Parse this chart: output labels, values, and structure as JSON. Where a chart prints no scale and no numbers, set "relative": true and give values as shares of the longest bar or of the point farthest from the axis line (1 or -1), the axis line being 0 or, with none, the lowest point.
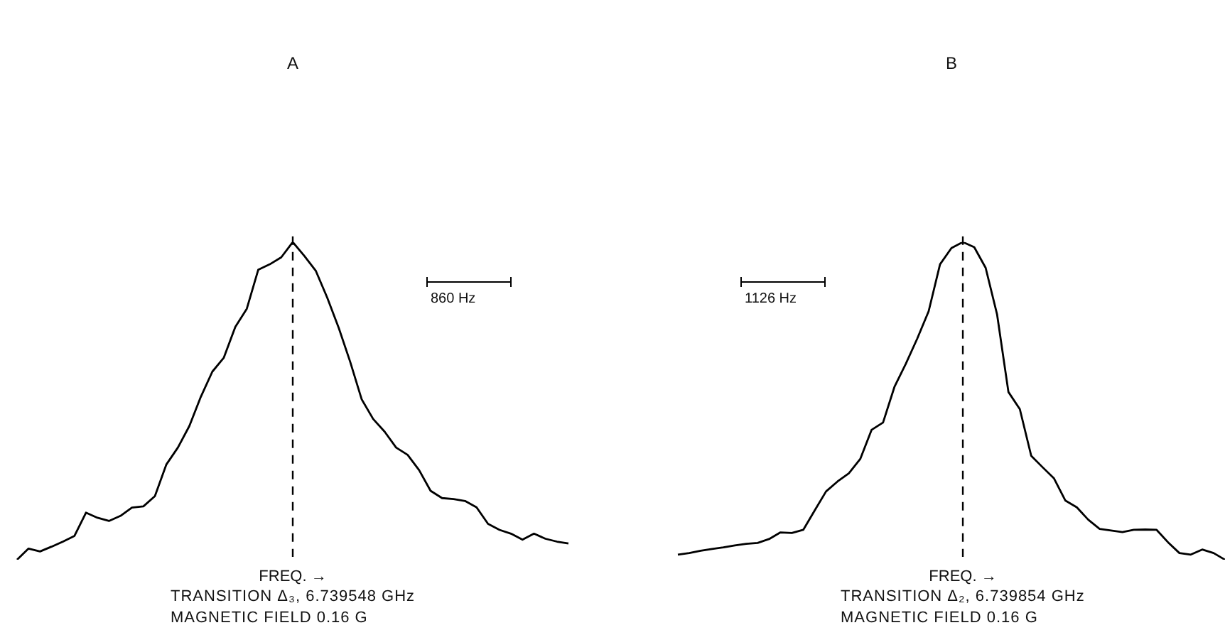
{
  "chart_data": [
    {
      "type": "line",
      "title": "A",
      "xlabel": "FREQ. →",
      "relative": true,
      "tick_labels": false,
      "annotations": [
        "TRANSITION Δ₃, 6.739548 GHz",
        "MAGNETIC FIELD 0.16 G",
        "860 Hz"
      ],
      "categories": [
        null,
        null,
        null,
        null,
        null,
        null,
        null,
        null,
        null,
        null,
        null,
        null,
        null,
        null,
        null,
        null,
        null,
        null,
        null,
        null,
        null,
        null,
        null,
        null,
        null,
        null,
        null,
        null,
        null,
        null,
        null,
        null,
        null,
        null,
        null,
        null,
        null,
        null,
        null,
        null,
        null,
        null,
        null,
        null,
        null,
        null,
        null,
        null,
        null
      ],
      "series": [
        {
          "color": "#000000",
          "values": [
            0,
            0.035,
            0.026,
            0.041,
            0.057,
            0.075,
            0.148,
            0.132,
            0.122,
            0.138,
            0.164,
            0.168,
            0.2,
            0.3,
            0.353,
            0.421,
            0.513,
            0.592,
            0.636,
            0.733,
            0.79,
            0.913,
            0.93,
            0.952,
            1,
            0.957,
            0.91,
            0.825,
            0.73,
            0.623,
            0.505,
            0.443,
            0.403,
            0.353,
            0.33,
            0.282,
            0.217,
            0.194,
            0.191,
            0.185,
            0.165,
            0.113,
            0.094,
            0.082,
            0.063,
            0.082,
            0.066,
            0.057,
            0.051
          ]
        }
      ]
    },
    {
      "type": "line",
      "title": "B",
      "xlabel": "FREQ. →",
      "relative": true,
      "tick_labels": false,
      "annotations": [
        "TRANSITION Δ₂, 6.739854 GHz",
        "MAGNETIC FIELD 0.16 G",
        "1126 Hz"
      ],
      "categories": [
        null,
        null,
        null,
        null,
        null,
        null,
        null,
        null,
        null,
        null,
        null,
        null,
        null,
        null,
        null,
        null,
        null,
        null,
        null,
        null,
        null,
        null,
        null,
        null,
        null,
        null,
        null,
        null,
        null,
        null,
        null,
        null,
        null,
        null,
        null,
        null,
        null,
        null,
        null,
        null,
        null,
        null,
        null,
        null,
        null,
        null,
        null,
        null,
        null
      ],
      "series": [
        {
          "color": "#000000",
          "values": [
            0.016,
            0.021,
            0.028,
            0.034,
            0.039,
            0.045,
            0.05,
            0.053,
            0.065,
            0.086,
            0.084,
            0.094,
            0.155,
            0.215,
            0.246,
            0.272,
            0.317,
            0.409,
            0.432,
            0.544,
            0.617,
            0.696,
            0.782,
            0.93,
            0.981,
            1,
            0.984,
            0.919,
            0.773,
            0.528,
            0.474,
            0.327,
            0.291,
            0.256,
            0.186,
            0.165,
            0.126,
            0.097,
            0.092,
            0.087,
            0.094,
            0.095,
            0.094,
            0.055,
            0.021,
            0.016,
            0.032,
            0.021,
            0
          ]
        }
      ]
    }
  ]
}
